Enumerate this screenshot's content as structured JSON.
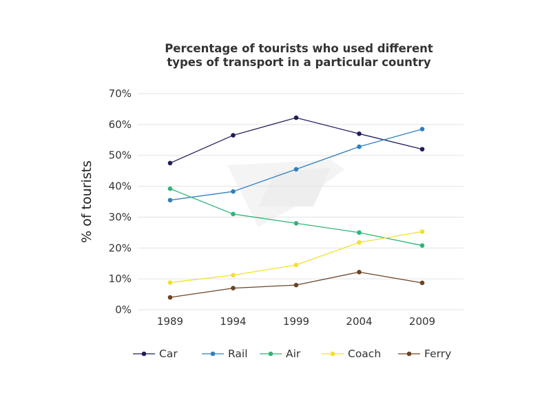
{
  "chart_data": {
    "type": "line",
    "title_lines": [
      "Percentage of tourists who used different",
      "types of transport in a particular country"
    ],
    "xlabel": "",
    "ylabel": "% of tourists",
    "ylim": [
      0,
      70
    ],
    "y_ticks": [
      0,
      10,
      20,
      30,
      40,
      50,
      60,
      70
    ],
    "y_tick_labels": [
      "0%",
      "10%",
      "20%",
      "30%",
      "40%",
      "50%",
      "60%",
      "70%"
    ],
    "categories": [
      "1989",
      "1994",
      "1999",
      "2004",
      "2009"
    ],
    "grid": true,
    "legend_position": "bottom",
    "series": [
      {
        "name": "Car",
        "color": "#1f1d5a",
        "values": [
          47.5,
          56.5,
          62.2,
          57,
          52
        ]
      },
      {
        "name": "Rail",
        "color": "#2f7fc1",
        "values": [
          35.5,
          38.3,
          45.5,
          52.8,
          58.5
        ]
      },
      {
        "name": "Air",
        "color": "#2fb57a",
        "values": [
          39.2,
          31,
          28,
          25,
          20.8
        ]
      },
      {
        "name": "Coach",
        "color": "#f2e02c",
        "values": [
          8.8,
          11.2,
          14.5,
          21.8,
          25.3
        ]
      },
      {
        "name": "Ferry",
        "color": "#6b4426",
        "values": [
          4,
          7,
          8,
          12.2,
          8.7
        ]
      }
    ]
  }
}
